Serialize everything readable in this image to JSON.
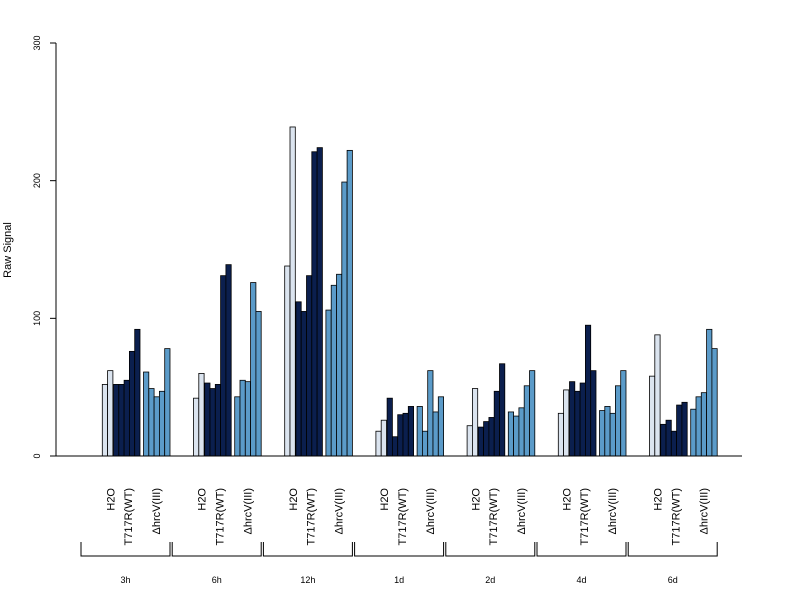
{
  "chart_data": {
    "type": "bar",
    "ylabel": "Raw Signal",
    "ylim": [
      0,
      300
    ],
    "yticks": [
      0,
      100,
      200,
      300
    ],
    "time_points": [
      "3h",
      "6h",
      "12h",
      "1d",
      "2d",
      "4d",
      "6d"
    ],
    "treatments": [
      {
        "name": "H2O",
        "color": "#dbe4ef"
      },
      {
        "name": "T717R(WT)",
        "color": "#0b1f4e"
      },
      {
        "name": "ΔhrcV(III)",
        "color": "#5b9bc9"
      }
    ],
    "values": [
      [
        [
          0,
          52,
          62
        ],
        [
          52,
          52,
          55,
          76,
          92
        ],
        [
          61,
          49,
          43,
          47,
          78
        ]
      ],
      [
        [
          0,
          42,
          60
        ],
        [
          53,
          49,
          52,
          131,
          139
        ],
        [
          43,
          55,
          54,
          126,
          105
        ]
      ],
      [
        [
          0,
          138,
          239
        ],
        [
          112,
          105,
          131,
          221,
          224
        ],
        [
          106,
          124,
          132,
          199,
          222
        ]
      ],
      [
        [
          0,
          18,
          26
        ],
        [
          42,
          14,
          30,
          31,
          36
        ],
        [
          36,
          18,
          62,
          32,
          43
        ]
      ],
      [
        [
          0,
          22,
          49
        ],
        [
          21,
          25,
          28,
          47,
          67
        ],
        [
          32,
          29,
          35,
          51,
          62
        ]
      ],
      [
        [
          0,
          31,
          48
        ],
        [
          54,
          47,
          53,
          95,
          62
        ],
        [
          33,
          36,
          31,
          51,
          62
        ]
      ],
      [
        [
          0,
          58,
          88
        ],
        [
          23,
          26,
          18,
          37,
          39
        ],
        [
          34,
          43,
          46,
          92,
          78
        ]
      ]
    ]
  }
}
